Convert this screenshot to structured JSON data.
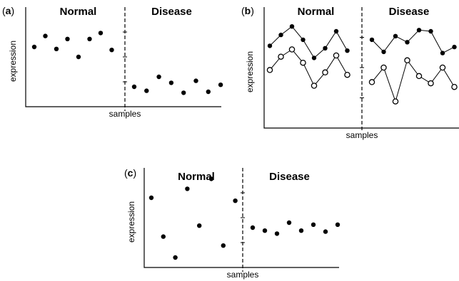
{
  "chart_data": [
    {
      "panel": "a",
      "type": "scatter",
      "ylabel": "expression",
      "xlabel": "samples",
      "groups": [
        "Normal",
        "Disease"
      ],
      "ylim": [
        0,
        10
      ],
      "x_per_group": 8,
      "series": [
        {
          "style": "filled",
          "connected": false,
          "normal": [
            6.0,
            7.1,
            5.8,
            6.8,
            5.0,
            6.8,
            7.4,
            5.7
          ],
          "disease": [
            2.0,
            1.6,
            3.0,
            2.4,
            1.4,
            2.6,
            1.5,
            2.2
          ]
        }
      ]
    },
    {
      "panel": "b",
      "type": "line",
      "ylabel": "expression",
      "xlabel": "samples",
      "groups": [
        "Normal",
        "Disease"
      ],
      "ylim": [
        0,
        10
      ],
      "x_per_group": 8,
      "series": [
        {
          "style": "filled",
          "connected": true,
          "normal": [
            6.8,
            7.7,
            8.4,
            7.3,
            5.8,
            6.6,
            8.0,
            6.4
          ],
          "disease": [
            7.3,
            6.3,
            7.6,
            7.1,
            8.1,
            8.0,
            6.2,
            6.7
          ]
        },
        {
          "style": "open",
          "connected": true,
          "normal": [
            4.8,
            5.9,
            6.5,
            5.4,
            3.5,
            4.6,
            6.0,
            4.4
          ],
          "disease": [
            3.8,
            5.0,
            2.2,
            5.6,
            4.3,
            3.7,
            5.0,
            3.4
          ]
        }
      ]
    },
    {
      "panel": "c",
      "type": "scatter",
      "ylabel": "expression",
      "xlabel": "samples",
      "groups": [
        "Normal",
        "Disease"
      ],
      "ylim": [
        0,
        10
      ],
      "x_per_group": 8,
      "series": [
        {
          "style": "filled",
          "connected": false,
          "normal": [
            7.0,
            3.1,
            1.0,
            7.9,
            4.2,
            8.9,
            2.2,
            6.7
          ],
          "disease": [
            4.0,
            3.7,
            3.4,
            4.5,
            3.7,
            4.3,
            3.6,
            4.3
          ]
        }
      ]
    }
  ]
}
